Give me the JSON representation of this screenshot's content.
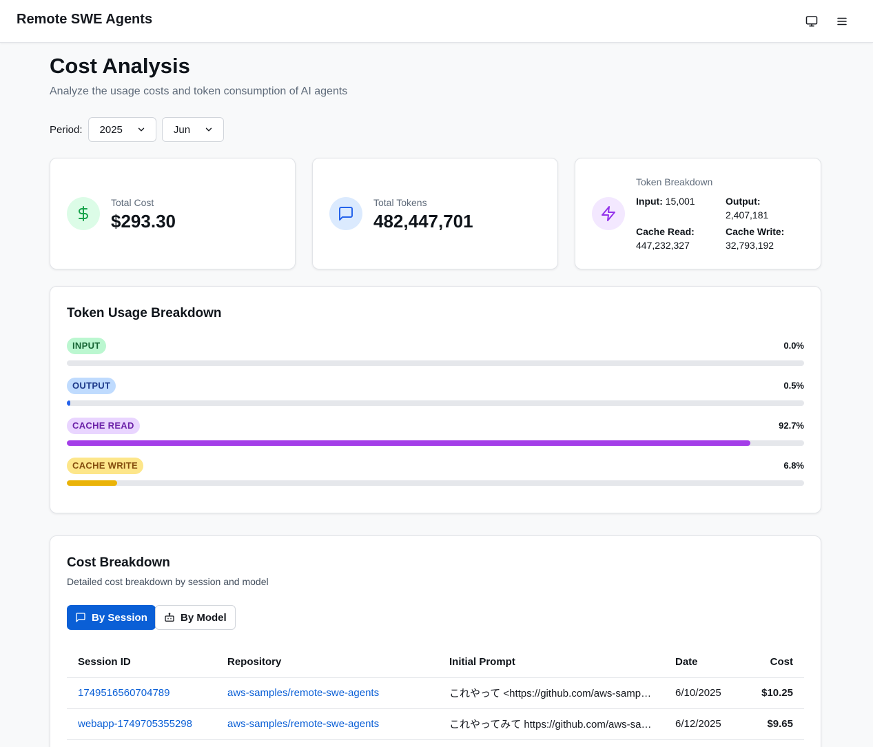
{
  "app": {
    "title": "Remote SWE Agents"
  },
  "page": {
    "title": "Cost Analysis",
    "subtitle": "Analyze the usage costs and token consumption of AI agents"
  },
  "period": {
    "label": "Period:",
    "year": "2025",
    "month": "Jun"
  },
  "stats": {
    "total_cost_label": "Total Cost",
    "total_cost": "$293.30",
    "total_tokens_label": "Total Tokens",
    "total_tokens": "482,447,701"
  },
  "token_breakdown": {
    "title": "Token Breakdown",
    "input_label": "Input:",
    "input": "15,001",
    "output_label": "Output:",
    "output": "2,407,181",
    "cache_read_label": "Cache Read:",
    "cache_read": "447,232,327",
    "cache_write_label": "Cache Write:",
    "cache_write": "32,793,192"
  },
  "usage": {
    "title": "Token Usage Breakdown",
    "bars": [
      {
        "label": "INPUT",
        "pct_text": "0.0%",
        "pct": 0.0
      },
      {
        "label": "OUTPUT",
        "pct_text": "0.5%",
        "pct": 0.5
      },
      {
        "label": "CACHE READ",
        "pct_text": "92.7%",
        "pct": 92.7
      },
      {
        "label": "CACHE WRITE",
        "pct_text": "6.8%",
        "pct": 6.8
      }
    ]
  },
  "cost_breakdown": {
    "title": "Cost Breakdown",
    "description": "Detailed cost breakdown by session and model",
    "tab_session": "By Session",
    "tab_model": "By Model",
    "columns": {
      "session_id": "Session ID",
      "repository": "Repository",
      "prompt": "Initial Prompt",
      "date": "Date",
      "cost": "Cost"
    },
    "rows": [
      {
        "session_id": "1749516560704789",
        "repository": "aws-samples/remote-swe-agents",
        "prompt": "これやって <https://github.com/aws-sample...",
        "date": "6/10/2025",
        "cost": "$10.25"
      },
      {
        "session_id": "webapp-1749705355298",
        "repository": "aws-samples/remote-swe-agents",
        "prompt": "これやってみて https://github.com/aws-samp...",
        "date": "6/12/2025",
        "cost": "$9.65"
      }
    ]
  },
  "colors": {
    "primary": "#0a5fd6",
    "input_bar": "#16a34a",
    "output_bar": "#2563eb",
    "cache_read_bar": "#a43ee8",
    "cache_write_bar": "#eab308"
  }
}
